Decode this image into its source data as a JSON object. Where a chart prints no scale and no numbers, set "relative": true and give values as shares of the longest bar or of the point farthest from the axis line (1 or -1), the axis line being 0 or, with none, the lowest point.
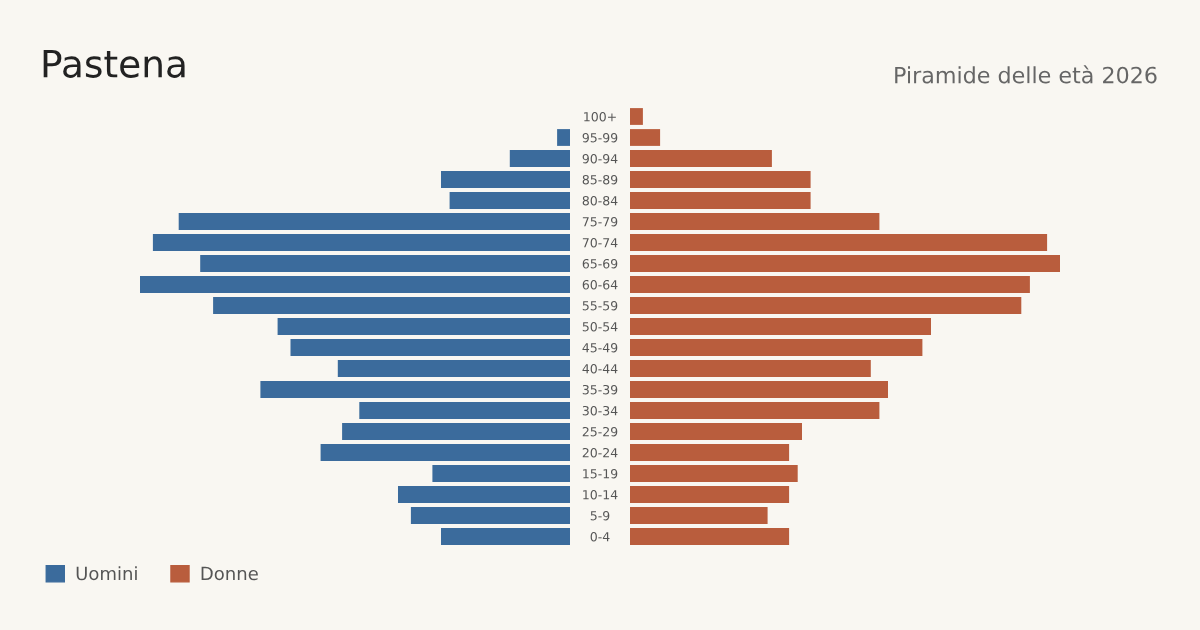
{
  "chart_data": [
    {
      "type": "bar",
      "orientation": "horizontal",
      "relative": true,
      "title": "Pastena",
      "tick_labels": false,
      "categories": [
        "100+",
        "95-99",
        "90-94",
        "85-89",
        "80-84",
        "75-79",
        "70-74",
        "65-69",
        "60-64",
        "55-59",
        "50-54",
        "45-49",
        "40-44",
        "35-39",
        "30-34",
        "25-29",
        "20-24",
        "15-19",
        "10-14",
        "5-9",
        "0-4"
      ],
      "series": [
        {
          "name": "Uomini",
          "color": "#3b6b9c",
          "values": [
            0,
            -0.03,
            -0.14,
            -0.3,
            -0.28,
            -0.91,
            -0.97,
            -0.86,
            -1,
            -0.83,
            -0.68,
            -0.65,
            -0.54,
            -0.72,
            -0.49,
            -0.53,
            -0.58,
            -0.32,
            -0.4,
            -0.37,
            -0.3
          ]
        }
      ],
      "legend": "bottom left"
    },
    {
      "type": "bar",
      "orientation": "horizontal",
      "relative": true,
      "subtitle": "Piramide delle età 2026",
      "categories": [
        "100+",
        "95-99",
        "90-94",
        "85-89",
        "80-84",
        "75-79",
        "70-74",
        "65-69",
        "60-64",
        "55-59",
        "50-54",
        "45-49",
        "40-44",
        "35-39",
        "30-34",
        "25-29",
        "20-24",
        "15-19",
        "10-14",
        "5-9",
        "0-4"
      ],
      "series": [
        {
          "name": "Donne",
          "color": "#b95d3d",
          "values": [
            0.03,
            0.07,
            0.33,
            0.42,
            0.42,
            0.58,
            0.97,
            1,
            0.93,
            0.91,
            0.7,
            0.68,
            0.56,
            0.6,
            0.58,
            0.4,
            0.37,
            0.39,
            0.37,
            0.32,
            0.37
          ]
        }
      ],
      "legend": "bottom left"
    }
  ]
}
